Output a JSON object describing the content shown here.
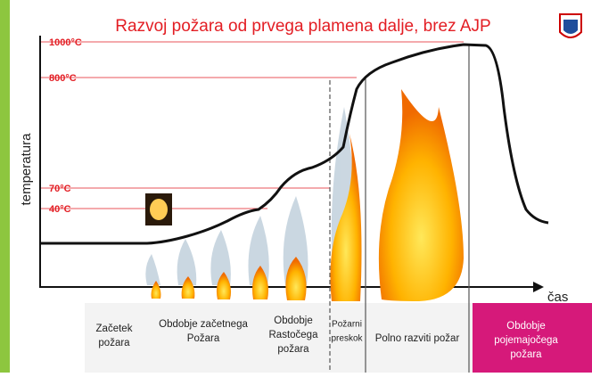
{
  "title": "Razvoj požara od prvega plamena dalje, brez AJP",
  "y_axis_label": "temperatura",
  "x_axis_label": "čas",
  "temperature_labels": [
    "1000°C",
    "800°C",
    "70°C",
    "40°C"
  ],
  "phases": [
    {
      "lines": [
        "Začetek",
        "požara"
      ]
    },
    {
      "lines": [
        "Obdobje začetnega",
        "Požara"
      ]
    },
    {
      "lines": [
        "Obdobje",
        "Rastočega",
        "požara"
      ]
    },
    {
      "lines": [
        "Požarni",
        "preskok"
      ]
    },
    {
      "lines": [
        "Polno razviti požar"
      ]
    },
    {
      "lines": [
        "Obdobje",
        "pojemajočega",
        "požara"
      ]
    }
  ]
}
